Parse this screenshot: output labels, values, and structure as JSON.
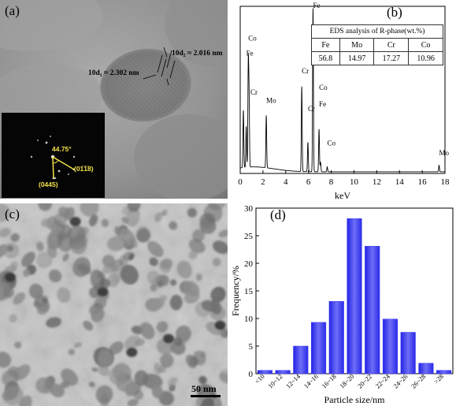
{
  "panel_a": {
    "label": "(a)",
    "annotations": {
      "d1": "10d₁ ≈ 2.302 nm",
      "d2": "10d₂ ≈ 2.016 nm"
    },
    "fft": {
      "angle": "44.75°",
      "plane1": "(01̅1̅8)",
      "plane2": "(0445)"
    }
  },
  "panel_b": {
    "label": "(b)",
    "table_title": "EDS analysis of R-phase(wt.%)",
    "table_headers": [
      "Fe",
      "Mo",
      "Cr",
      "Co"
    ],
    "table_values": [
      "56.8",
      "14.97",
      "17.27",
      "10.96"
    ]
  },
  "panel_c": {
    "label": "(c)",
    "scale_bar": "50 nm"
  },
  "panel_d": {
    "label": "(d)"
  },
  "chart_data": [
    {
      "type": "line",
      "xlabel": "keV",
      "ylabel": "",
      "xlim": [
        0,
        18
      ],
      "x_ticks": [
        "0",
        "2",
        "4",
        "6",
        "8",
        "10",
        "12",
        "14",
        "16",
        "18"
      ],
      "peaks": [
        {
          "x": 0.28,
          "y": 0.35
        },
        {
          "x": 0.53,
          "y": 0.25
        },
        {
          "x": 0.71,
          "y": 0.62
        },
        {
          "x": 0.78,
          "y": 0.4
        },
        {
          "x": 2.29,
          "y": 0.32
        },
        {
          "x": 5.41,
          "y": 0.52
        },
        {
          "x": 5.95,
          "y": 0.18
        },
        {
          "x": 6.4,
          "y": 1.0
        },
        {
          "x": 6.93,
          "y": 0.26
        },
        {
          "x": 7.06,
          "y": 0.06
        },
        {
          "x": 7.65,
          "y": 0.03
        },
        {
          "x": 17.48,
          "y": 0.04
        }
      ],
      "peak_labels": [
        {
          "text": "Fe",
          "x": 6.4,
          "y": 1.0
        },
        {
          "text": "Co",
          "x": 0.71,
          "y": 0.8
        },
        {
          "text": "Fe",
          "x": 0.53,
          "y": 0.71
        },
        {
          "text": "Cr",
          "x": 0.9,
          "y": 0.47
        },
        {
          "text": "Mo",
          "x": 2.29,
          "y": 0.42
        },
        {
          "text": "Cr",
          "x": 5.41,
          "y": 0.6
        },
        {
          "text": "Cr",
          "x": 5.95,
          "y": 0.37
        },
        {
          "text": "Co",
          "x": 6.93,
          "y": 0.5
        },
        {
          "text": "Fe",
          "x": 6.93,
          "y": 0.4
        },
        {
          "text": "Co",
          "x": 7.65,
          "y": 0.16
        },
        {
          "text": "Mo",
          "x": 17.48,
          "y": 0.1
        }
      ]
    },
    {
      "type": "bar",
      "xlabel": "Particle size/nm",
      "ylabel": "Frequency/%",
      "ylim": [
        0,
        30
      ],
      "y_ticks": [
        "0",
        "5",
        "10",
        "15",
        "20",
        "25",
        "30"
      ],
      "categories": [
        "<10",
        "10~12",
        "12~14",
        "14~16",
        "16~18",
        "18~20",
        "20~22",
        "22~24",
        "24~26",
        "26~28",
        ">28"
      ],
      "values": [
        0.6,
        0.6,
        5.0,
        9.3,
        13.1,
        28.1,
        23.1,
        9.9,
        7.5,
        1.9,
        0.6
      ],
      "color": "#3d3df2"
    }
  ]
}
